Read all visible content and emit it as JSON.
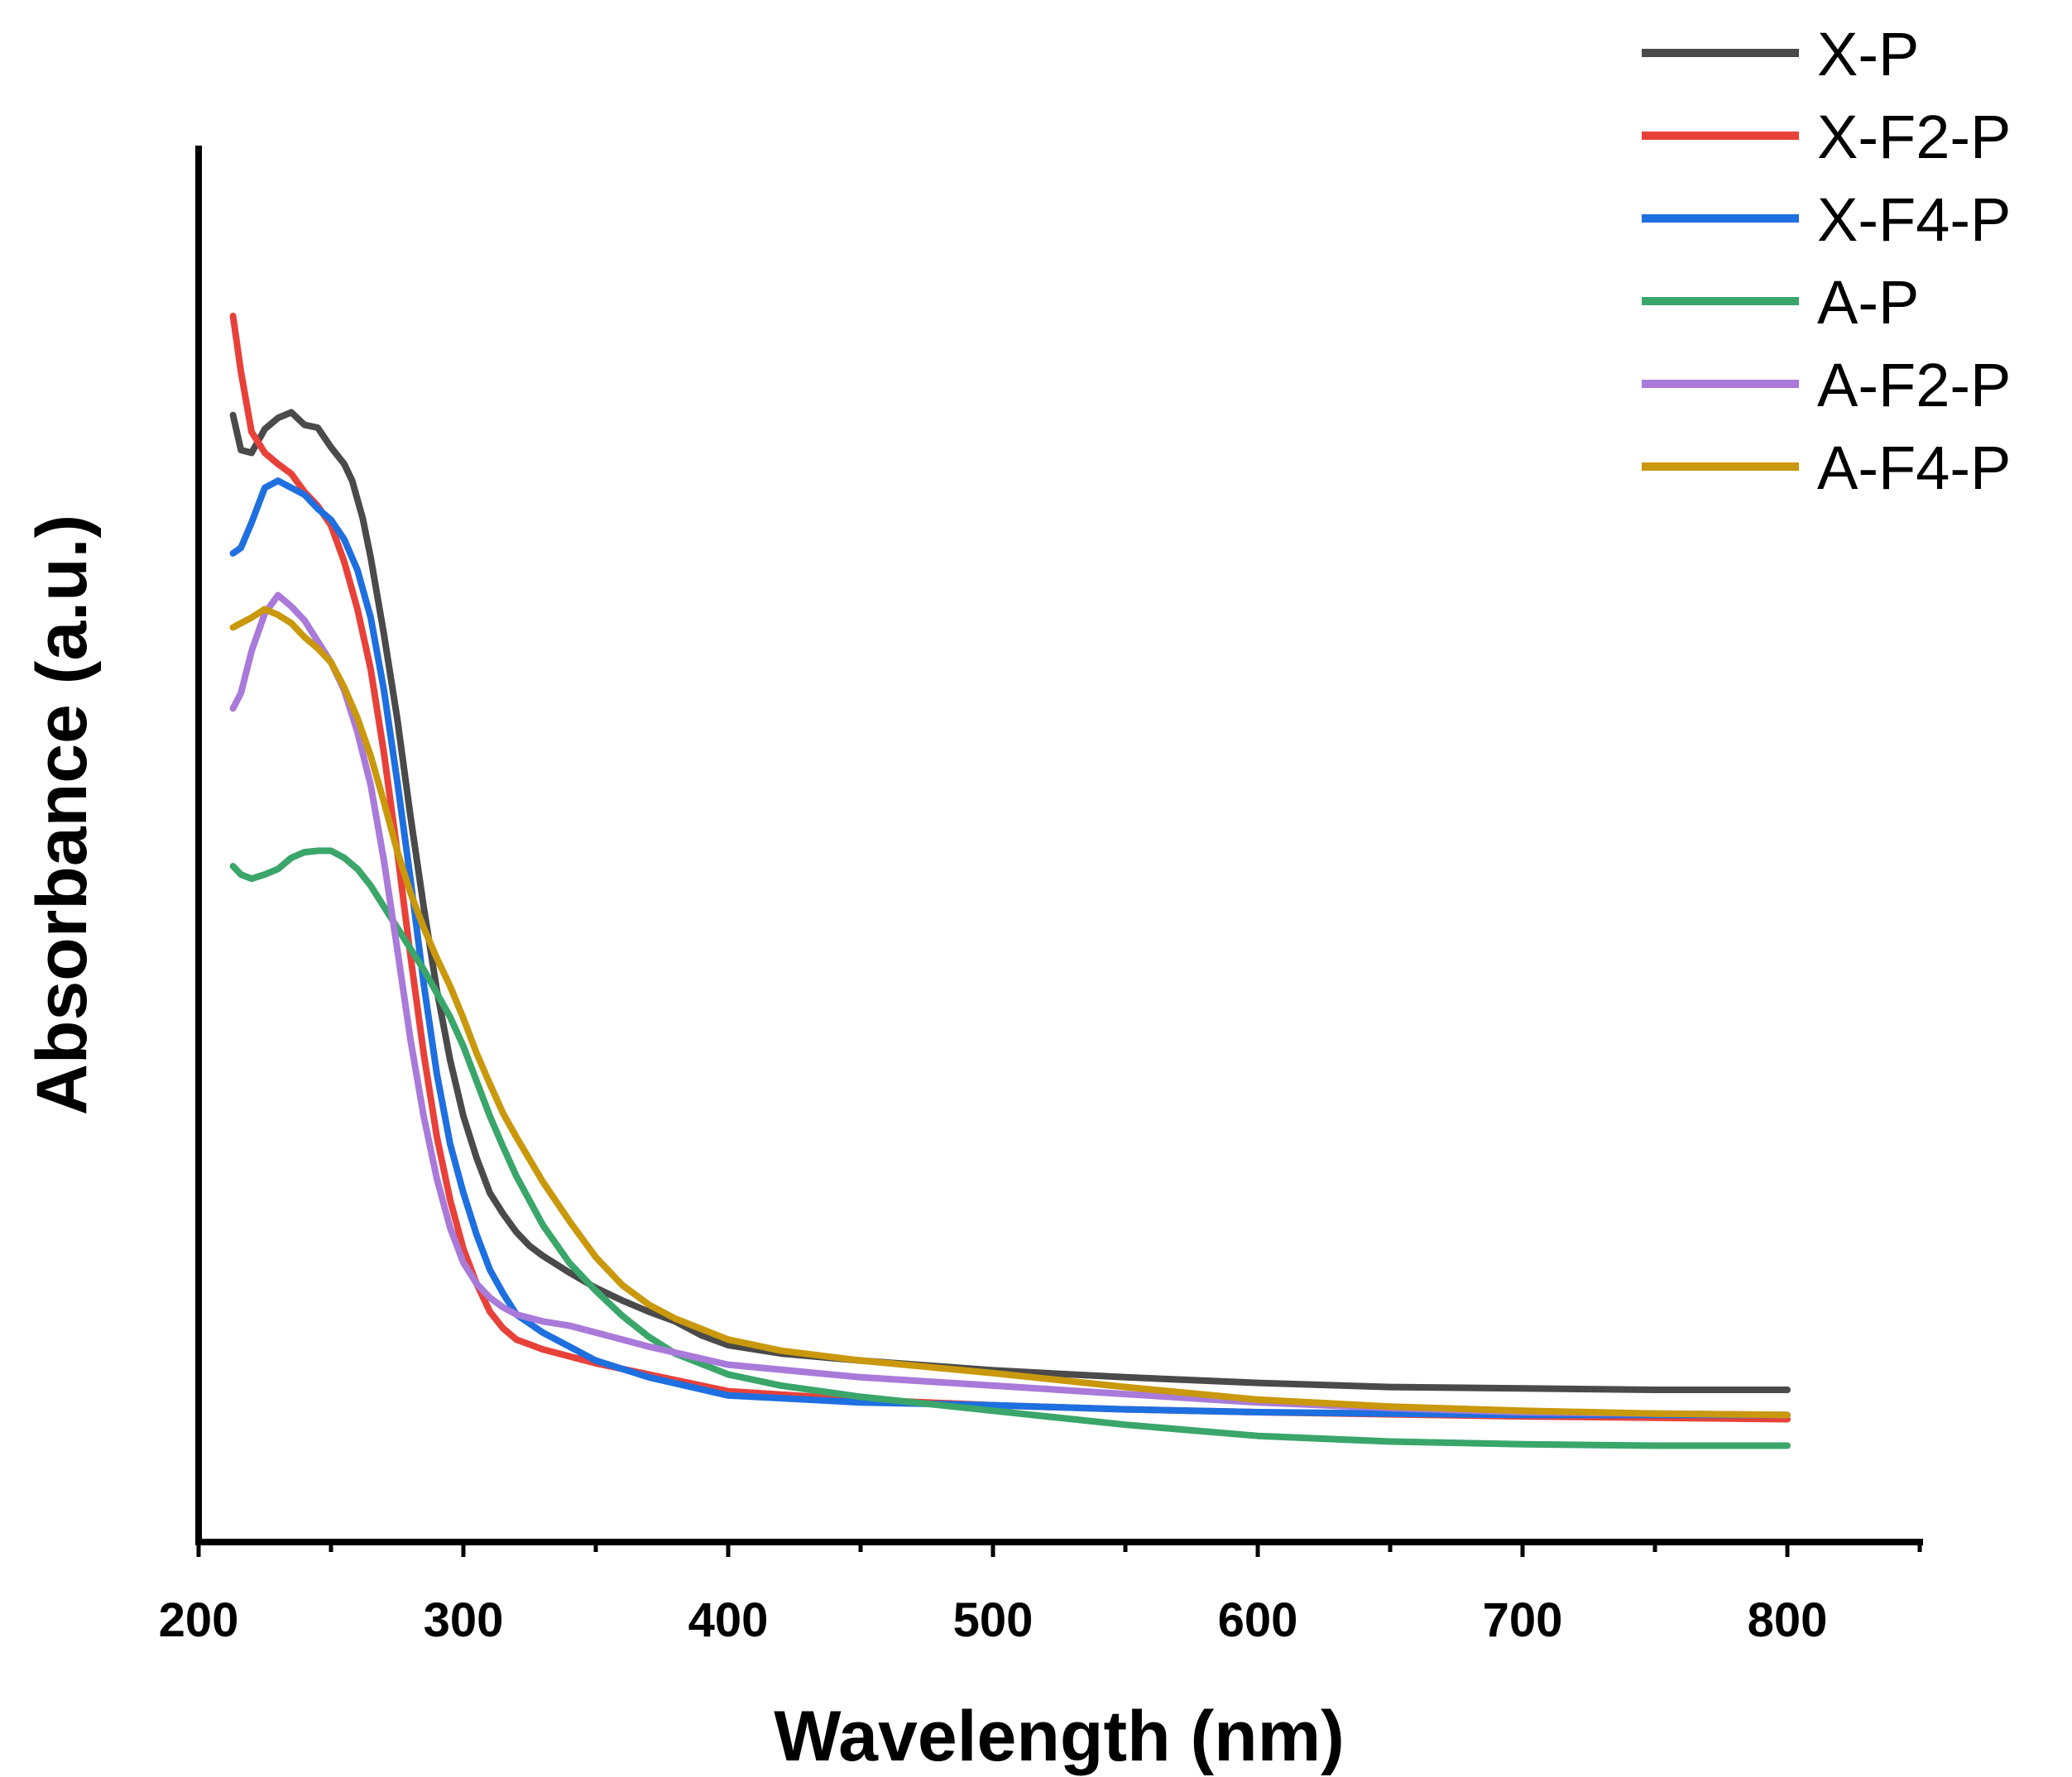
{
  "chart_data": {
    "type": "line",
    "title": "",
    "xlabel": "Wavelength (nm)",
    "ylabel": "Absorbance (a.u.)",
    "xlim": [
      200,
      850
    ],
    "ylim": [
      0,
      1
    ],
    "xticks": [
      200,
      300,
      400,
      500,
      600,
      700,
      800
    ],
    "grid": false,
    "legend_position": "top-right",
    "series": [
      {
        "name": "X-P",
        "color": "#4a4a4a",
        "points": [
          [
            213,
            0.807
          ],
          [
            216,
            0.782
          ],
          [
            220,
            0.78
          ],
          [
            225,
            0.797
          ],
          [
            230,
            0.805
          ],
          [
            235,
            0.809
          ],
          [
            240,
            0.8
          ],
          [
            245,
            0.798
          ],
          [
            250,
            0.784
          ],
          [
            255,
            0.772
          ],
          [
            258,
            0.76
          ],
          [
            262,
            0.733
          ],
          [
            265,
            0.705
          ],
          [
            270,
            0.65
          ],
          [
            275,
            0.59
          ],
          [
            280,
            0.52
          ],
          [
            285,
            0.455
          ],
          [
            290,
            0.395
          ],
          [
            295,
            0.345
          ],
          [
            300,
            0.305
          ],
          [
            305,
            0.275
          ],
          [
            310,
            0.25
          ],
          [
            315,
            0.235
          ],
          [
            320,
            0.222
          ],
          [
            325,
            0.212
          ],
          [
            330,
            0.205
          ],
          [
            340,
            0.193
          ],
          [
            350,
            0.182
          ],
          [
            360,
            0.173
          ],
          [
            370,
            0.165
          ],
          [
            380,
            0.158
          ],
          [
            390,
            0.148
          ],
          [
            400,
            0.141
          ],
          [
            420,
            0.135
          ],
          [
            450,
            0.13
          ],
          [
            500,
            0.123
          ],
          [
            550,
            0.118
          ],
          [
            600,
            0.114
          ],
          [
            650,
            0.111
          ],
          [
            700,
            0.11
          ],
          [
            750,
            0.109
          ],
          [
            800,
            0.109
          ]
        ]
      },
      {
        "name": "X-F2-P",
        "color": "#e8413a",
        "points": [
          [
            213,
            0.878
          ],
          [
            216,
            0.838
          ],
          [
            220,
            0.795
          ],
          [
            225,
            0.78
          ],
          [
            230,
            0.772
          ],
          [
            235,
            0.765
          ],
          [
            240,
            0.752
          ],
          [
            245,
            0.742
          ],
          [
            250,
            0.728
          ],
          [
            255,
            0.702
          ],
          [
            260,
            0.668
          ],
          [
            265,
            0.625
          ],
          [
            270,
            0.565
          ],
          [
            275,
            0.495
          ],
          [
            280,
            0.42
          ],
          [
            285,
            0.35
          ],
          [
            290,
            0.29
          ],
          [
            295,
            0.245
          ],
          [
            300,
            0.21
          ],
          [
            305,
            0.185
          ],
          [
            310,
            0.165
          ],
          [
            315,
            0.153
          ],
          [
            320,
            0.145
          ],
          [
            330,
            0.138
          ],
          [
            340,
            0.133
          ],
          [
            350,
            0.128
          ],
          [
            370,
            0.12
          ],
          [
            400,
            0.108
          ],
          [
            450,
            0.102
          ],
          [
            500,
            0.098
          ],
          [
            550,
            0.095
          ],
          [
            600,
            0.093
          ],
          [
            700,
            0.09
          ],
          [
            750,
            0.089
          ],
          [
            800,
            0.088
          ]
        ]
      },
      {
        "name": "X-F4-P",
        "color": "#1e6fe0",
        "points": [
          [
            213,
            0.708
          ],
          [
            216,
            0.712
          ],
          [
            220,
            0.73
          ],
          [
            225,
            0.755
          ],
          [
            230,
            0.76
          ],
          [
            235,
            0.755
          ],
          [
            240,
            0.75
          ],
          [
            245,
            0.74
          ],
          [
            250,
            0.732
          ],
          [
            255,
            0.718
          ],
          [
            260,
            0.696
          ],
          [
            265,
            0.662
          ],
          [
            270,
            0.61
          ],
          [
            275,
            0.545
          ],
          [
            280,
            0.475
          ],
          [
            285,
            0.4
          ],
          [
            290,
            0.335
          ],
          [
            295,
            0.285
          ],
          [
            300,
            0.25
          ],
          [
            305,
            0.22
          ],
          [
            310,
            0.195
          ],
          [
            315,
            0.178
          ],
          [
            320,
            0.163
          ],
          [
            330,
            0.15
          ],
          [
            340,
            0.14
          ],
          [
            350,
            0.13
          ],
          [
            370,
            0.118
          ],
          [
            400,
            0.105
          ],
          [
            450,
            0.1
          ],
          [
            500,
            0.098
          ],
          [
            550,
            0.095
          ],
          [
            600,
            0.093
          ],
          [
            700,
            0.091
          ],
          [
            750,
            0.091
          ],
          [
            800,
            0.091
          ]
        ]
      },
      {
        "name": "A-P",
        "color": "#3aa66a",
        "points": [
          [
            213,
            0.484
          ],
          [
            216,
            0.478
          ],
          [
            220,
            0.475
          ],
          [
            225,
            0.478
          ],
          [
            230,
            0.482
          ],
          [
            235,
            0.49
          ],
          [
            240,
            0.494
          ],
          [
            245,
            0.495
          ],
          [
            250,
            0.495
          ],
          [
            255,
            0.49
          ],
          [
            260,
            0.482
          ],
          [
            265,
            0.47
          ],
          [
            270,
            0.455
          ],
          [
            275,
            0.44
          ],
          [
            280,
            0.425
          ],
          [
            285,
            0.41
          ],
          [
            290,
            0.393
          ],
          [
            295,
            0.376
          ],
          [
            300,
            0.355
          ],
          [
            305,
            0.33
          ],
          [
            310,
            0.305
          ],
          [
            315,
            0.283
          ],
          [
            320,
            0.262
          ],
          [
            330,
            0.227
          ],
          [
            340,
            0.2
          ],
          [
            350,
            0.18
          ],
          [
            360,
            0.162
          ],
          [
            370,
            0.147
          ],
          [
            380,
            0.135
          ],
          [
            400,
            0.12
          ],
          [
            420,
            0.112
          ],
          [
            450,
            0.104
          ],
          [
            500,
            0.094
          ],
          [
            550,
            0.084
          ],
          [
            600,
            0.076
          ],
          [
            650,
            0.072
          ],
          [
            700,
            0.07
          ],
          [
            750,
            0.069
          ],
          [
            800,
            0.069
          ]
        ]
      },
      {
        "name": "A-F2-P",
        "color": "#a97ad9",
        "points": [
          [
            213,
            0.597
          ],
          [
            216,
            0.608
          ],
          [
            220,
            0.638
          ],
          [
            225,
            0.665
          ],
          [
            230,
            0.678
          ],
          [
            235,
            0.67
          ],
          [
            240,
            0.66
          ],
          [
            245,
            0.645
          ],
          [
            250,
            0.63
          ],
          [
            255,
            0.61
          ],
          [
            260,
            0.58
          ],
          [
            265,
            0.542
          ],
          [
            270,
            0.488
          ],
          [
            275,
            0.425
          ],
          [
            280,
            0.36
          ],
          [
            285,
            0.305
          ],
          [
            290,
            0.26
          ],
          [
            295,
            0.225
          ],
          [
            300,
            0.2
          ],
          [
            305,
            0.185
          ],
          [
            310,
            0.175
          ],
          [
            315,
            0.168
          ],
          [
            320,
            0.163
          ],
          [
            330,
            0.158
          ],
          [
            340,
            0.155
          ],
          [
            350,
            0.15
          ],
          [
            370,
            0.14
          ],
          [
            400,
            0.127
          ],
          [
            450,
            0.118
          ],
          [
            500,
            0.112
          ],
          [
            550,
            0.106
          ],
          [
            600,
            0.1
          ],
          [
            650,
            0.096
          ],
          [
            700,
            0.093
          ],
          [
            750,
            0.092
          ],
          [
            800,
            0.091
          ]
        ]
      },
      {
        "name": "A-F4-P",
        "color": "#c9980c",
        "points": [
          [
            213,
            0.655
          ],
          [
            216,
            0.658
          ],
          [
            220,
            0.662
          ],
          [
            225,
            0.668
          ],
          [
            230,
            0.664
          ],
          [
            235,
            0.658
          ],
          [
            240,
            0.648
          ],
          [
            245,
            0.64
          ],
          [
            250,
            0.63
          ],
          [
            255,
            0.612
          ],
          [
            260,
            0.59
          ],
          [
            265,
            0.563
          ],
          [
            270,
            0.53
          ],
          [
            275,
            0.495
          ],
          [
            280,
            0.465
          ],
          [
            285,
            0.44
          ],
          [
            290,
            0.418
          ],
          [
            295,
            0.398
          ],
          [
            300,
            0.375
          ],
          [
            305,
            0.35
          ],
          [
            310,
            0.328
          ],
          [
            315,
            0.307
          ],
          [
            320,
            0.29
          ],
          [
            330,
            0.258
          ],
          [
            340,
            0.23
          ],
          [
            350,
            0.204
          ],
          [
            360,
            0.184
          ],
          [
            370,
            0.17
          ],
          [
            380,
            0.16
          ],
          [
            400,
            0.145
          ],
          [
            420,
            0.137
          ],
          [
            450,
            0.13
          ],
          [
            500,
            0.121
          ],
          [
            550,
            0.111
          ],
          [
            600,
            0.102
          ],
          [
            650,
            0.097
          ],
          [
            700,
            0.094
          ],
          [
            750,
            0.092
          ],
          [
            800,
            0.091
          ]
        ]
      }
    ]
  }
}
